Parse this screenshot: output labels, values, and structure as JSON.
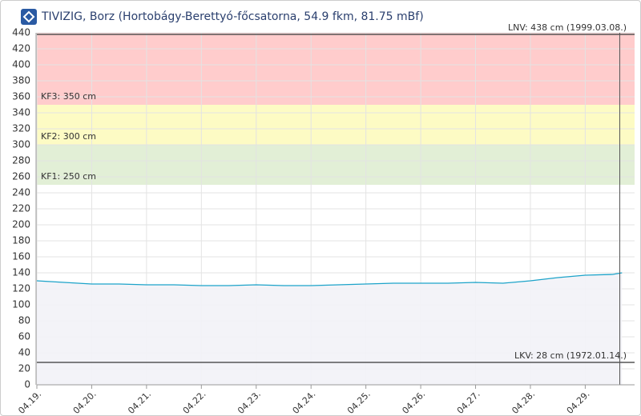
{
  "chart_data": {
    "type": "line",
    "title": "TIVIZIG, Borz (Hortobágy-Berettyó-főcsatorna, 54.9 fkm, 81.75 mBf)",
    "x": [
      0,
      0.5,
      1,
      1.5,
      2,
      2.5,
      3,
      3.5,
      4,
      4.5,
      5,
      5.5,
      6,
      6.5,
      7,
      7.5,
      8,
      8.5,
      9,
      9.5,
      10,
      10.5,
      10.67
    ],
    "series": [
      {
        "color": "#1ca3c9",
        "fill": "#f2f2f7",
        "values": [
          130,
          128,
          126,
          126,
          125,
          125,
          124,
          124,
          125,
          124,
          124,
          125,
          126,
          127,
          127,
          127,
          128,
          127,
          130,
          134,
          137,
          138,
          140
        ]
      }
    ],
    "xlim": [
      0,
      10.9
    ],
    "xticks": [
      {
        "value": 0,
        "label": "04.19."
      },
      {
        "value": 1,
        "label": "04.20."
      },
      {
        "value": 2,
        "label": "04.21."
      },
      {
        "value": 3,
        "label": "04.22."
      },
      {
        "value": 4,
        "label": "04.23."
      },
      {
        "value": 5,
        "label": "04.24."
      },
      {
        "value": 6,
        "label": "04.25."
      },
      {
        "value": 7,
        "label": "04.26."
      },
      {
        "value": 8,
        "label": "04.27."
      },
      {
        "value": 9,
        "label": "04.28."
      },
      {
        "value": 10,
        "label": "04.29."
      }
    ],
    "ylim": [
      0,
      440
    ],
    "yticks": [
      0,
      20,
      40,
      60,
      80,
      100,
      120,
      140,
      160,
      180,
      200,
      220,
      240,
      260,
      280,
      300,
      320,
      340,
      360,
      380,
      400,
      420,
      440
    ],
    "grid": true,
    "bands": [
      {
        "label": "KF1: 250 cm",
        "value": 250,
        "color": "#e2efd6"
      },
      {
        "label": "KF2: 300 cm",
        "value": 300,
        "color": "#fdfbc4"
      },
      {
        "label": "KF3: 350 cm",
        "value": 350,
        "color": "#ffcccc"
      }
    ],
    "reference_lines": [
      {
        "label": "LNV: 438 cm (1999.03.08.)",
        "value": 438
      },
      {
        "label": "LKV: 28 cm (1972.01.14.)",
        "value": 28
      }
    ],
    "marker_x": 10.63
  }
}
